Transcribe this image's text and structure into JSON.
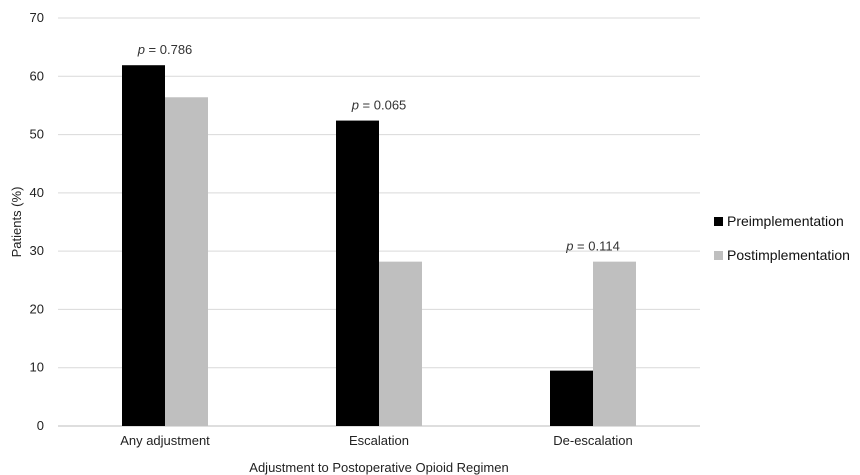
{
  "chart_data": {
    "type": "bar",
    "title": "",
    "xlabel": "Adjustment to Postoperative Opioid Regimen",
    "ylabel": "Patients (%)",
    "categories": [
      "Any adjustment",
      "Escalation",
      "De-escalation"
    ],
    "ylim": [
      0,
      70
    ],
    "yticks": [
      0,
      10,
      20,
      30,
      40,
      50,
      60,
      70
    ],
    "grid": "horizontal",
    "legend_position": "right",
    "series": [
      {
        "name": "Preimplementation",
        "values": [
          61.9,
          52.4,
          9.5
        ],
        "color": "#000000"
      },
      {
        "name": "Postimplementation",
        "values": [
          56.4,
          28.2,
          28.2
        ],
        "color": "#bfbfbf"
      }
    ],
    "annotations": [
      {
        "category": "Any adjustment",
        "prefix": "p",
        "text": " = 0.786"
      },
      {
        "category": "Escalation",
        "prefix": "p",
        "text": " = 0.065"
      },
      {
        "category": "De-escalation",
        "prefix": "p",
        "text": " = 0.114"
      }
    ]
  }
}
